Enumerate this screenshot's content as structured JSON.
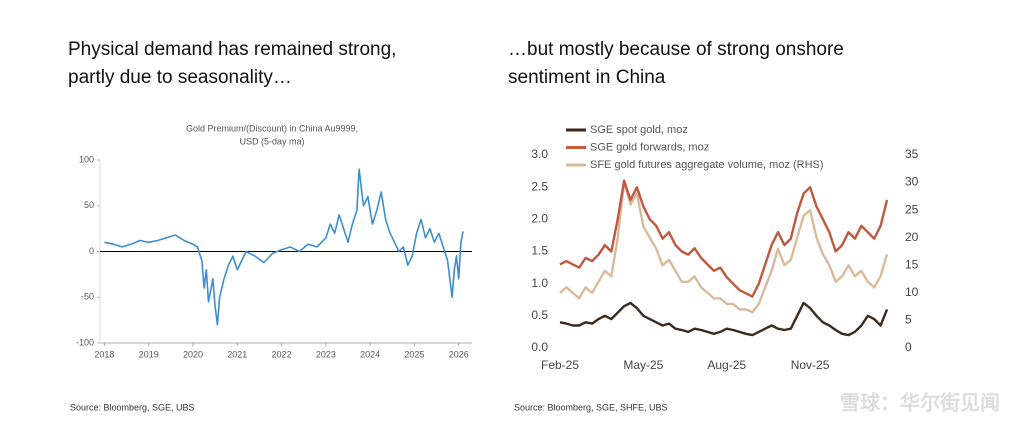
{
  "chart_data": [
    {
      "type": "line",
      "heading": [
        "Physical demand has remained strong,",
        "partly due to seasonality…"
      ],
      "title": [
        "Gold Premium/(Discount)  in China Au9999,",
        "USD (5-day ma)"
      ],
      "x": [
        2018.0,
        2018.2,
        2018.4,
        2018.6,
        2018.8,
        2019.0,
        2019.2,
        2019.4,
        2019.6,
        2019.8,
        2020.0,
        2020.1,
        2020.2,
        2020.25,
        2020.3,
        2020.35,
        2020.45,
        2020.5,
        2020.55,
        2020.6,
        2020.7,
        2020.8,
        2020.9,
        2021.0,
        2021.1,
        2021.2,
        2021.4,
        2021.6,
        2021.8,
        2022.0,
        2022.2,
        2022.4,
        2022.6,
        2022.8,
        2023.0,
        2023.1,
        2023.2,
        2023.3,
        2023.4,
        2023.5,
        2023.6,
        2023.7,
        2023.75,
        2023.8,
        2023.85,
        2023.95,
        2024.05,
        2024.15,
        2024.25,
        2024.35,
        2024.45,
        2024.55,
        2024.65,
        2024.75,
        2024.85,
        2024.95,
        2025.05,
        2025.15,
        2025.25,
        2025.35,
        2025.45,
        2025.55,
        2025.65,
        2025.75,
        2025.85,
        2025.9,
        2025.95,
        2026.0,
        2026.05,
        2026.1
      ],
      "values": [
        10,
        8,
        5,
        8,
        12,
        10,
        12,
        15,
        18,
        12,
        8,
        5,
        -10,
        -40,
        -20,
        -55,
        -30,
        -60,
        -80,
        -50,
        -30,
        -15,
        -5,
        -20,
        -10,
        0,
        -5,
        -12,
        -2,
        2,
        5,
        0,
        8,
        5,
        15,
        30,
        20,
        40,
        25,
        10,
        30,
        45,
        90,
        70,
        50,
        60,
        30,
        45,
        65,
        35,
        20,
        10,
        0,
        5,
        -15,
        -5,
        20,
        35,
        15,
        25,
        10,
        20,
        5,
        -10,
        -50,
        -20,
        -5,
        -30,
        10,
        22
      ],
      "color": "#3b8fd0",
      "xlim": [
        2017.9,
        2026.3
      ],
      "xticks": [
        2018,
        2019,
        2020,
        2021,
        2022,
        2023,
        2024,
        2025,
        2026
      ],
      "ylim": [
        -100,
        100
      ],
      "yticks": [
        100,
        50,
        0,
        -50,
        -100
      ],
      "zero_line": true,
      "source": "Source: Bloomberg, SGE, UBS"
    },
    {
      "type": "line",
      "heading": [
        "…but mostly because of strong onshore",
        "sentiment in China"
      ],
      "categories": [
        "Feb-25",
        null,
        null,
        null,
        null,
        null,
        null,
        null,
        null,
        null,
        null,
        null,
        null,
        "May-25",
        null,
        null,
        null,
        null,
        null,
        null,
        null,
        null,
        null,
        null,
        null,
        null,
        "Aug-25",
        null,
        null,
        null,
        null,
        null,
        null,
        null,
        null,
        null,
        null,
        null,
        null,
        "Nov-25",
        null,
        null,
        null,
        null,
        null,
        null,
        null,
        null,
        null,
        null,
        null,
        null
      ],
      "series": [
        {
          "name": "SGE spot gold, moz",
          "color": "#3b2a20",
          "values": [
            0.4,
            0.38,
            0.35,
            0.35,
            0.4,
            0.38,
            0.45,
            0.5,
            0.45,
            0.55,
            0.65,
            0.7,
            0.62,
            0.5,
            0.45,
            0.4,
            0.35,
            0.38,
            0.3,
            0.28,
            0.25,
            0.3,
            0.28,
            0.25,
            0.22,
            0.25,
            0.3,
            0.28,
            0.25,
            0.22,
            0.2,
            0.25,
            0.3,
            0.35,
            0.3,
            0.28,
            0.3,
            0.5,
            0.7,
            0.62,
            0.5,
            0.4,
            0.35,
            0.28,
            0.22,
            0.2,
            0.25,
            0.35,
            0.5,
            0.45,
            0.35,
            0.6
          ]
        },
        {
          "name": "SGE gold forwards, moz",
          "color": "#c0573f",
          "values": [
            1.3,
            1.35,
            1.3,
            1.25,
            1.4,
            1.35,
            1.45,
            1.6,
            1.5,
            2.0,
            2.6,
            2.3,
            2.5,
            2.2,
            2.0,
            1.9,
            1.7,
            1.8,
            1.6,
            1.5,
            1.45,
            1.55,
            1.4,
            1.3,
            1.2,
            1.25,
            1.1,
            1.0,
            0.9,
            0.85,
            0.8,
            1.0,
            1.3,
            1.6,
            1.8,
            1.6,
            1.7,
            2.1,
            2.4,
            2.5,
            2.2,
            2.0,
            1.8,
            1.5,
            1.6,
            1.8,
            1.7,
            1.9,
            1.8,
            1.7,
            1.9,
            2.3
          ]
        },
        {
          "name": "SFE gold futures aggregate volume, moz (RHS)",
          "color": "#d9bb9c",
          "axis": "y2",
          "values": [
            10,
            11,
            10,
            9,
            11,
            10,
            12,
            14,
            13,
            20,
            30,
            26,
            28,
            22,
            20,
            18,
            15,
            16,
            14,
            12,
            12,
            13,
            11,
            10,
            9,
            9,
            8,
            8,
            7,
            7,
            6.5,
            8,
            11,
            14,
            18,
            15,
            16,
            20,
            24,
            25,
            20,
            17,
            15,
            12,
            13,
            15,
            13,
            14,
            12,
            11,
            13,
            17
          ]
        }
      ],
      "ylim": [
        0,
        3
      ],
      "yticks": [
        {
          "value": 0,
          "label": "0.0"
        },
        0.5,
        {
          "value": 1,
          "label": "1.0"
        },
        1.5,
        {
          "value": 2,
          "label": "2.0"
        },
        2.5,
        {
          "value": 3,
          "label": "3.0"
        }
      ],
      "y2lim": [
        0,
        35
      ],
      "y2ticks": [
        0,
        5,
        10,
        15,
        20,
        25,
        30,
        35
      ],
      "source": "Source: Bloomberg, SGE, SHFE, UBS"
    }
  ],
  "watermark": "雪球：华尔街见闻"
}
